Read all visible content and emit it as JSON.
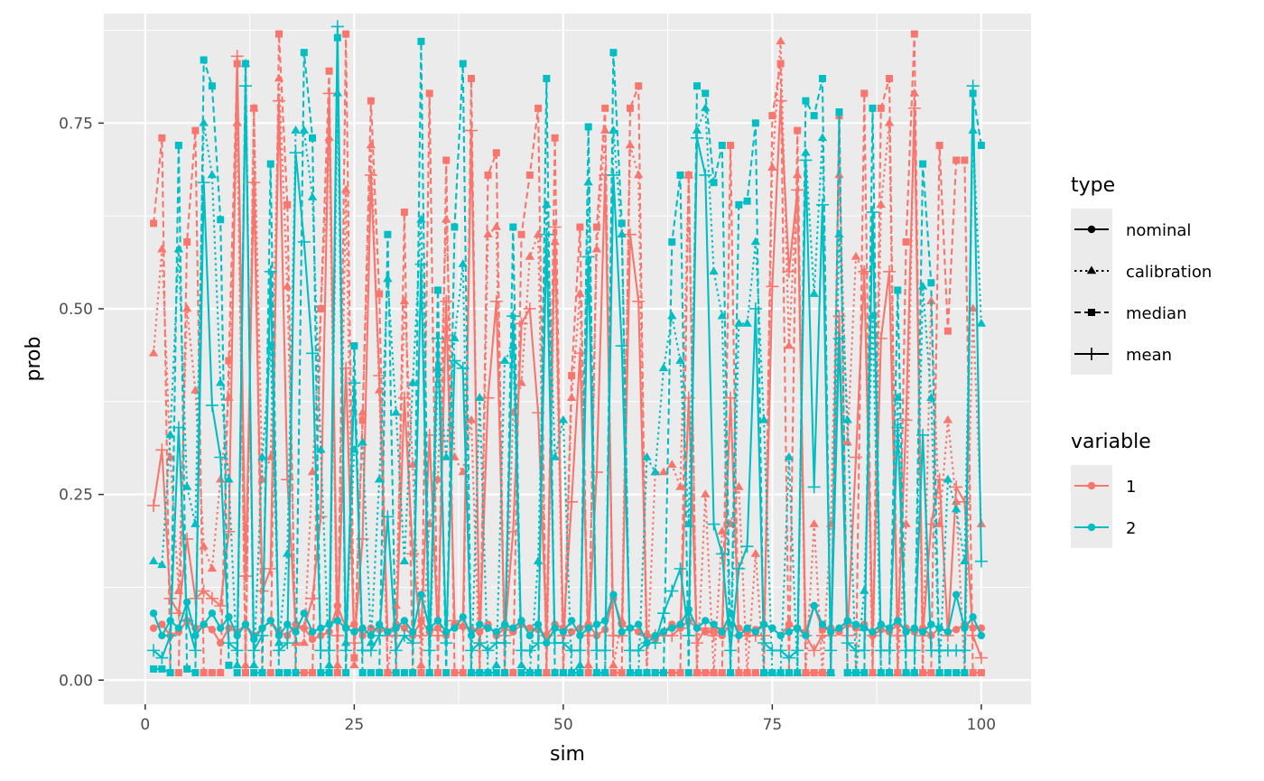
{
  "chart_data": {
    "type": "line",
    "xlabel": "sim",
    "ylabel": "prob",
    "xlim": [
      -4.95,
      105.95
    ],
    "ylim": [
      -0.0325,
      0.8975
    ],
    "x_ticks": [
      0,
      25,
      50,
      75,
      100
    ],
    "x_tick_labels": [
      "0",
      "25",
      "50",
      "75",
      "100"
    ],
    "y_ticks": [
      0,
      0.25,
      0.5,
      0.75
    ],
    "y_tick_labels": [
      "0.00",
      "0.25",
      "0.50",
      "0.75"
    ],
    "grid": true,
    "legend_placement": "right",
    "legends": {
      "type": {
        "title": "type",
        "items": [
          {
            "label": "nominal",
            "linetype": "solid",
            "shape": "circle"
          },
          {
            "label": "calibration",
            "linetype": "dotted",
            "shape": "triangle"
          },
          {
            "label": "median",
            "linetype": "dashed",
            "shape": "square"
          },
          {
            "label": "mean",
            "linetype": "solid",
            "shape": "plus"
          }
        ]
      },
      "variable": {
        "title": "variable",
        "items": [
          {
            "label": "1",
            "color": "#F8766D"
          },
          {
            "label": "2",
            "color": "#00BFC4"
          }
        ]
      }
    },
    "x": [
      1,
      2,
      3,
      4,
      5,
      6,
      7,
      8,
      9,
      10,
      11,
      12,
      13,
      14,
      15,
      16,
      17,
      18,
      19,
      20,
      21,
      22,
      23,
      24,
      25,
      26,
      27,
      28,
      29,
      30,
      31,
      32,
      33,
      34,
      35,
      36,
      37,
      38,
      39,
      40,
      41,
      42,
      43,
      44,
      45,
      46,
      47,
      48,
      49,
      50,
      51,
      52,
      53,
      54,
      55,
      56,
      57,
      58,
      59,
      60,
      61,
      62,
      63,
      64,
      65,
      66,
      67,
      68,
      69,
      70,
      71,
      72,
      73,
      74,
      75,
      76,
      77,
      78,
      79,
      80,
      81,
      82,
      83,
      84,
      85,
      86,
      87,
      88,
      89,
      90,
      91,
      92,
      93,
      94,
      95,
      96,
      97,
      98,
      99,
      100
    ],
    "series": [
      {
        "variable": "1",
        "type": "nominal",
        "color": "#F8766D",
        "values": [
          0.07,
          0.075,
          0.06,
          0.065,
          0.08,
          0.07,
          0.075,
          0.068,
          0.05,
          0.07,
          0.065,
          0.075,
          0.06,
          0.07,
          0.08,
          0.065,
          0.06,
          0.075,
          0.07,
          0.055,
          0.06,
          0.065,
          0.1,
          0.07,
          0.075,
          0.06,
          0.07,
          0.068,
          0.065,
          0.075,
          0.07,
          0.06,
          0.08,
          0.065,
          0.07,
          0.06,
          0.075,
          0.072,
          0.068,
          0.065,
          0.075,
          0.06,
          0.07,
          0.065,
          0.075,
          0.07,
          0.068,
          0.06,
          0.075,
          0.07,
          0.065,
          0.07,
          0.075,
          0.06,
          0.068,
          0.11,
          0.075,
          0.07,
          0.065,
          0.06,
          0.055,
          0.065,
          0.075,
          0.07,
          0.08,
          0.07,
          0.065,
          0.068,
          0.06,
          0.075,
          0.07,
          0.065,
          0.068,
          0.075,
          0.07,
          0.06,
          0.075,
          0.07,
          0.065,
          0.1,
          0.068,
          0.07,
          0.065,
          0.075,
          0.07,
          0.075,
          0.06,
          0.068,
          0.065,
          0.075,
          0.07,
          0.065,
          0.07,
          0.06,
          0.07,
          0.065,
          0.068,
          0.075,
          0.07,
          0.07
        ]
      },
      {
        "variable": "1",
        "type": "calibration",
        "color": "#F8766D",
        "values": [
          0.44,
          0.58,
          0.3,
          0.12,
          0.5,
          0.39,
          0.18,
          0.15,
          0.27,
          0.38,
          0.75,
          0.02,
          0.77,
          0.27,
          0.3,
          0.81,
          0.53,
          0.05,
          0.05,
          0.28,
          0.5,
          0.73,
          0.02,
          0.66,
          0.02,
          0.36,
          0.72,
          0.39,
          0.01,
          0.1,
          0.51,
          0.29,
          0.02,
          0.21,
          0.27,
          0.62,
          0.3,
          0.28,
          0.35,
          0.01,
          0.6,
          0.61,
          0.01,
          0.36,
          0.4,
          0.57,
          0.6,
          0.01,
          0.59,
          0.01,
          0.38,
          0.52,
          0.02,
          0.58,
          0.74,
          0.02,
          0.08,
          0.72,
          0.68,
          0.01,
          0.28,
          0.28,
          0.29,
          0.26,
          0.68,
          0.01,
          0.25,
          0.01,
          0.2,
          0.21,
          0.26,
          0.01,
          0.17,
          0.01,
          0.69,
          0.86,
          0.45,
          0.68,
          0.01,
          0.21,
          0.01,
          0.21,
          0.68,
          0.32,
          0.57,
          0.55,
          0.01,
          0.64,
          0.75,
          0.01,
          0.21,
          0.79,
          0.01,
          0.51,
          0.21,
          0.35,
          0.24,
          0.01,
          0.5,
          0.21
        ]
      },
      {
        "variable": "1",
        "type": "median",
        "color": "#F8766D",
        "values": [
          0.615,
          0.73,
          0.01,
          0.01,
          0.59,
          0.74,
          0.01,
          0.01,
          0.01,
          0.43,
          0.83,
          0.01,
          0.77,
          0.01,
          0.01,
          0.87,
          0.64,
          0.01,
          0.01,
          0.01,
          0.5,
          0.82,
          0.01,
          0.87,
          0.03,
          0.35,
          0.78,
          0.52,
          0.01,
          0.01,
          0.63,
          0.01,
          0.01,
          0.79,
          0.01,
          0.7,
          0.01,
          0.01,
          0.81,
          0.01,
          0.68,
          0.71,
          0.01,
          0.01,
          0.6,
          0.68,
          0.77,
          0.01,
          0.73,
          0.01,
          0.41,
          0.61,
          0.01,
          0.61,
          0.77,
          0.01,
          0.01,
          0.77,
          0.8,
          0.01,
          0.01,
          0.01,
          0.01,
          0.01,
          0.68,
          0.01,
          0.01,
          0.01,
          0.01,
          0.72,
          0.01,
          0.01,
          0.01,
          0.01,
          0.76,
          0.83,
          0.01,
          0.74,
          0.01,
          0.01,
          0.01,
          0.01,
          0.76,
          0.01,
          0.01,
          0.79,
          0.01,
          0.77,
          0.81,
          0.01,
          0.59,
          0.87,
          0.01,
          0.01,
          0.72,
          0.47,
          0.7,
          0.7,
          0.01,
          0.01
        ]
      },
      {
        "variable": "1",
        "type": "mean",
        "color": "#F8766D",
        "values": [
          0.235,
          0.31,
          0.11,
          0.09,
          0.19,
          0.11,
          0.12,
          0.11,
          0.1,
          0.2,
          0.84,
          0.14,
          0.67,
          0.12,
          0.15,
          0.78,
          0.27,
          0.07,
          0.07,
          0.11,
          0.22,
          0.79,
          0.06,
          0.42,
          0.05,
          0.19,
          0.68,
          0.41,
          0.06,
          0.06,
          0.38,
          0.17,
          0.06,
          0.33,
          0.06,
          0.51,
          0.08,
          0.07,
          0.74,
          0.05,
          0.38,
          0.51,
          0.06,
          0.2,
          0.48,
          0.5,
          0.36,
          0.06,
          0.61,
          0.06,
          0.24,
          0.44,
          0.06,
          0.28,
          0.68,
          0.06,
          0.06,
          0.6,
          0.51,
          0.06,
          0.06,
          0.06,
          0.06,
          0.07,
          0.38,
          0.05,
          0.07,
          0.06,
          0.07,
          0.38,
          0.06,
          0.06,
          0.06,
          0.06,
          0.53,
          0.78,
          0.55,
          0.66,
          0.06,
          0.04,
          0.06,
          0.06,
          0.49,
          0.06,
          0.3,
          0.55,
          0.06,
          0.46,
          0.55,
          0.06,
          0.35,
          0.77,
          0.06,
          0.21,
          0.27,
          0.06,
          0.26,
          0.24,
          0.06,
          0.03
        ]
      },
      {
        "variable": "2",
        "type": "nominal",
        "color": "#00BFC4",
        "values": [
          0.09,
          0.06,
          0.08,
          0.07,
          0.105,
          0.06,
          0.075,
          0.09,
          0.07,
          0.085,
          0.06,
          0.075,
          0.055,
          0.07,
          0.08,
          0.06,
          0.075,
          0.065,
          0.09,
          0.065,
          0.07,
          0.075,
          0.08,
          0.07,
          0.065,
          0.07,
          0.06,
          0.075,
          0.065,
          0.07,
          0.08,
          0.065,
          0.115,
          0.07,
          0.08,
          0.065,
          0.07,
          0.085,
          0.06,
          0.075,
          0.07,
          0.065,
          0.075,
          0.07,
          0.08,
          0.06,
          0.075,
          0.05,
          0.07,
          0.065,
          0.08,
          0.06,
          0.07,
          0.075,
          0.08,
          0.115,
          0.065,
          0.07,
          0.075,
          0.05,
          0.06,
          0.065,
          0.07,
          0.075,
          0.095,
          0.07,
          0.08,
          0.075,
          0.065,
          0.09,
          0.06,
          0.07,
          0.065,
          0.075,
          0.07,
          0.06,
          0.065,
          0.07,
          0.06,
          0.1,
          0.075,
          0.065,
          0.07,
          0.08,
          0.075,
          0.07,
          0.065,
          0.075,
          0.07,
          0.08,
          0.065,
          0.07,
          0.065,
          0.075,
          0.07,
          0.065,
          0.115,
          0.07,
          0.085,
          0.06
        ]
      },
      {
        "variable": "2",
        "type": "calibration",
        "color": "#00BFC4",
        "values": [
          0.16,
          0.155,
          0.33,
          0.58,
          0.26,
          0.21,
          0.75,
          0.68,
          0.4,
          0.27,
          0.02,
          0.83,
          0.02,
          0.3,
          0.45,
          0.05,
          0.17,
          0.74,
          0.74,
          0.65,
          0.31,
          0.02,
          0.79,
          0.05,
          0.31,
          0.32,
          0.05,
          0.27,
          0.54,
          0.36,
          0.16,
          0.4,
          0.62,
          0.01,
          0.42,
          0.3,
          0.46,
          0.56,
          0.01,
          0.38,
          0.01,
          0.02,
          0.43,
          0.45,
          0.02,
          0.01,
          0.16,
          0.64,
          0.3,
          0.35,
          0.01,
          0.02,
          0.67,
          0.01,
          0.01,
          0.74,
          0.6,
          0.01,
          0.01,
          0.3,
          0.28,
          0.42,
          0.49,
          0.43,
          0.21,
          0.74,
          0.77,
          0.55,
          0.49,
          0.01,
          0.48,
          0.48,
          0.59,
          0.35,
          0.01,
          0.01,
          0.3,
          0.01,
          0.71,
          0.52,
          0.73,
          0.01,
          0.6,
          0.35,
          0.01,
          0.12,
          0.49,
          0.01,
          0.01,
          0.38,
          0.01,
          0.01,
          0.53,
          0.38,
          0.01,
          0.27,
          0.23,
          0.16,
          0.74,
          0.48
        ]
      },
      {
        "variable": "2",
        "type": "median",
        "color": "#00BFC4",
        "values": [
          0.015,
          0.015,
          0.01,
          0.72,
          0.015,
          0.01,
          0.835,
          0.8,
          0.62,
          0.02,
          0.01,
          0.83,
          0.01,
          0.01,
          0.695,
          0.01,
          0.01,
          0.01,
          0.845,
          0.73,
          0.01,
          0.01,
          0.865,
          0.01,
          0.45,
          0.01,
          0.01,
          0.01,
          0.6,
          0.01,
          0.01,
          0.01,
          0.86,
          0.01,
          0.525,
          0.01,
          0.61,
          0.83,
          0.01,
          0.01,
          0.01,
          0.01,
          0.01,
          0.61,
          0.01,
          0.01,
          0.01,
          0.81,
          0.01,
          0.01,
          0.01,
          0.01,
          0.745,
          0.01,
          0.01,
          0.845,
          0.615,
          0.01,
          0.01,
          0.01,
          0.01,
          0.01,
          0.59,
          0.68,
          0.01,
          0.8,
          0.79,
          0.67,
          0.72,
          0.01,
          0.64,
          0.645,
          0.75,
          0.01,
          0.01,
          0.01,
          0.01,
          0.01,
          0.78,
          0.76,
          0.81,
          0.01,
          0.765,
          0.01,
          0.01,
          0.01,
          0.77,
          0.01,
          0.01,
          0.525,
          0.01,
          0.01,
          0.695,
          0.535,
          0.01,
          0.01,
          0.01,
          0.01,
          0.79,
          0.72
        ]
      },
      {
        "variable": "2",
        "type": "mean",
        "color": "#00BFC4",
        "values": [
          0.04,
          0.03,
          0.06,
          0.34,
          0.08,
          0.04,
          0.67,
          0.37,
          0.3,
          0.05,
          0.04,
          0.8,
          0.04,
          0.06,
          0.55,
          0.04,
          0.05,
          0.71,
          0.59,
          0.44,
          0.04,
          0.04,
          0.88,
          0.04,
          0.4,
          0.04,
          0.04,
          0.06,
          0.22,
          0.04,
          0.06,
          0.05,
          0.56,
          0.04,
          0.46,
          0.05,
          0.43,
          0.42,
          0.04,
          0.05,
          0.04,
          0.05,
          0.05,
          0.49,
          0.04,
          0.04,
          0.05,
          0.6,
          0.05,
          0.05,
          0.04,
          0.04,
          0.57,
          0.04,
          0.04,
          0.68,
          0.45,
          0.04,
          0.04,
          0.05,
          0.05,
          0.09,
          0.12,
          0.15,
          0.06,
          0.73,
          0.68,
          0.21,
          0.17,
          0.04,
          0.15,
          0.18,
          0.5,
          0.05,
          0.04,
          0.04,
          0.03,
          0.04,
          0.7,
          0.26,
          0.64,
          0.04,
          0.46,
          0.05,
          0.04,
          0.04,
          0.63,
          0.04,
          0.04,
          0.34,
          0.04,
          0.04,
          0.33,
          0.04,
          0.04,
          0.04,
          0.04,
          0.04,
          0.8,
          0.16
        ]
      }
    ]
  }
}
